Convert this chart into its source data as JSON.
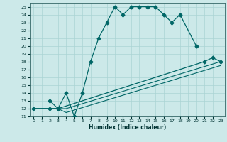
{
  "xlabel": "Humidex (Indice chaleur)",
  "bg_color": "#cce9e9",
  "grid_color": "#aad4d4",
  "line_color": "#006666",
  "xlim": [
    -0.5,
    23.5
  ],
  "ylim": [
    11,
    25.5
  ],
  "xticks": [
    0,
    1,
    2,
    3,
    4,
    5,
    6,
    7,
    8,
    9,
    10,
    11,
    12,
    13,
    14,
    15,
    16,
    17,
    18,
    19,
    20,
    21,
    22,
    23
  ],
  "yticks": [
    11,
    12,
    13,
    14,
    15,
    16,
    17,
    18,
    19,
    20,
    21,
    22,
    23,
    24,
    25
  ],
  "series": [
    {
      "x": [
        2,
        3,
        4,
        5,
        6,
        7,
        8,
        9,
        10,
        11,
        12,
        13,
        14,
        15,
        16,
        17,
        18,
        20
      ],
      "y": [
        13,
        12,
        14,
        11,
        14,
        18,
        21,
        23,
        25,
        24,
        25,
        25,
        25,
        25,
        24,
        23,
        24,
        20
      ],
      "marker": "D",
      "markersize": 2.5,
      "lw": 0.9
    },
    {
      "x": [
        0,
        2,
        3,
        21,
        22,
        23
      ],
      "y": [
        12,
        12,
        12,
        18,
        18.5,
        18
      ],
      "marker": "D",
      "markersize": 2.5,
      "lw": 0.9
    },
    {
      "x": [
        0,
        3,
        4,
        23
      ],
      "y": [
        12,
        12,
        11.5,
        17.5
      ],
      "marker": null,
      "markersize": 0,
      "lw": 0.8
    },
    {
      "x": [
        0,
        3,
        4,
        23
      ],
      "y": [
        12,
        12,
        12,
        18
      ],
      "marker": null,
      "markersize": 0,
      "lw": 0.8
    }
  ]
}
